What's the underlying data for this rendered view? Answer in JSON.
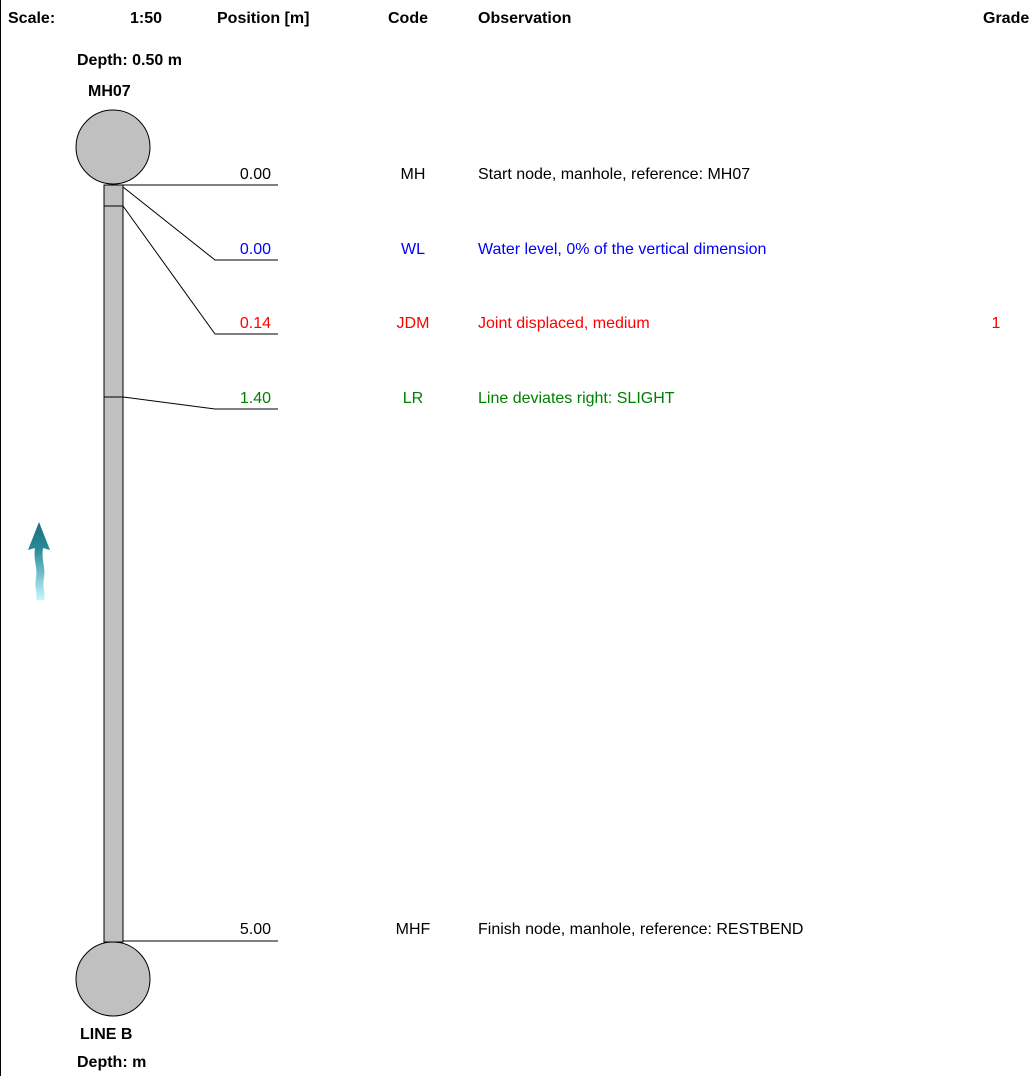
{
  "header": {
    "scale_label": "Scale:",
    "scale_value": "1:50",
    "position_label": "Position [m]",
    "code_label": "Code",
    "observation_label": "Observation",
    "grade_label": "Grade"
  },
  "start_node": {
    "depth": "Depth: 0.50 m",
    "name": "MH07"
  },
  "end_node": {
    "name": "LINE B",
    "depth": "Depth: m"
  },
  "observations": [
    {
      "position": "0.00",
      "code": "MH",
      "observation": "Start node, manhole, reference: MH07",
      "grade": "",
      "color": "#000000"
    },
    {
      "position": "0.00",
      "code": "WL",
      "observation": "Water level, 0% of the vertical dimension",
      "grade": "",
      "color": "#0000ff"
    },
    {
      "position": "0.14",
      "code": "JDM",
      "observation": "Joint displaced, medium",
      "grade": "1",
      "color": "#ff0000"
    },
    {
      "position": "1.40",
      "code": "LR",
      "observation": "Line deviates right: SLIGHT",
      "grade": "",
      "color": "#008000"
    },
    {
      "position": "5.00",
      "code": "MHF",
      "observation": "Finish node, manhole, reference: RESTBEND",
      "grade": "",
      "color": "#000000"
    }
  ],
  "icons": {
    "flow_direction": "flow-direction-arrow-icon"
  },
  "colors": {
    "pipe_fill": "#c0c0c0",
    "manhole_fill": "#c0c0c0",
    "arrow_top": "#1a6e7e",
    "arrow_bottom": "#b8f4ff"
  }
}
